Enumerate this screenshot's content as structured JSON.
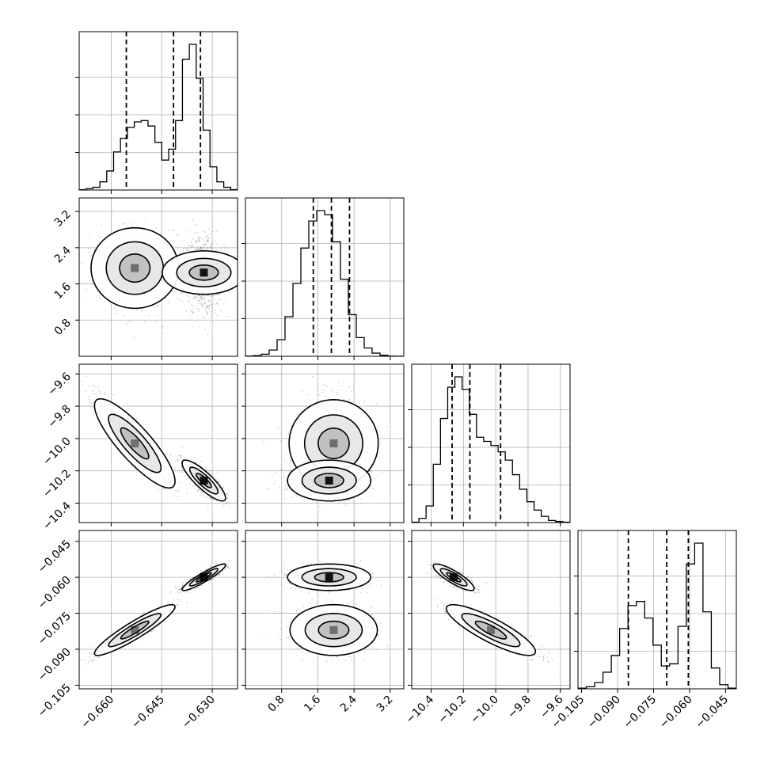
{
  "chart_data": {
    "type": "corner",
    "grid": true,
    "parameters": [
      {
        "range": [
          -0.6695,
          -0.6225
        ],
        "ticks": [
          -0.66,
          -0.645,
          -0.63
        ],
        "tick_labels": [
          "−0.660",
          "−0.645",
          "−0.630"
        ],
        "quantiles": [
          -0.6555,
          -0.6415,
          -0.6335
        ],
        "hist": [
          0.2,
          1,
          2,
          6,
          14,
          28,
          38,
          46,
          50,
          51,
          47,
          35,
          22,
          30,
          51,
          96,
          107,
          82,
          44,
          17,
          6,
          2,
          0.3
        ],
        "modes": [
          {
            "center": -0.653,
            "sd": 0.005,
            "w": 0.44
          },
          {
            "center": -0.6325,
            "sd": 0.0028,
            "w": 0.56
          }
        ]
      },
      {
        "range": [
          0.0,
          3.5
        ],
        "ticks": [
          0.8,
          1.6,
          2.4,
          3.2
        ],
        "tick_labels": [
          "0.8",
          "1.6",
          "2.4",
          "3.2"
        ],
        "quantiles": [
          1.5,
          1.9,
          2.3
        ],
        "hist": [
          0.1,
          0.3,
          1,
          3,
          8,
          19,
          35,
          52,
          65,
          70,
          68,
          55,
          37,
          20,
          9,
          4,
          1.5,
          0.5,
          0.1,
          0.05
        ],
        "modes": [
          {
            "center": 1.9,
            "sd": 0.4,
            "w": 1
          }
        ]
      },
      {
        "range": [
          -10.52,
          -9.54
        ],
        "ticks": [
          -10.4,
          -10.2,
          -10.0,
          -9.8,
          -9.6
        ],
        "tick_labels": [
          "−10.4",
          "−10.2",
          "−10.0",
          "−9.8",
          "−9.6"
        ],
        "quantiles": [
          -10.27,
          -10.16,
          -9.97
        ],
        "hist": [
          0.2,
          2,
          8,
          28,
          50,
          65,
          70,
          64,
          52,
          41,
          39,
          37,
          34,
          30,
          23,
          16,
          10,
          6,
          3,
          1,
          0.5,
          0.2
        ],
        "modes": [
          {
            "center": -10.26,
            "sd": 0.06,
            "w": 0.5
          },
          {
            "center": -10.03,
            "sd": 0.14,
            "w": 0.5
          }
        ]
      },
      {
        "range": [
          -0.1065,
          -0.0405
        ],
        "ticks": [
          -0.105,
          -0.09,
          -0.075,
          -0.06,
          -0.045
        ],
        "tick_labels": [
          "−0.105",
          "−0.090",
          "−0.075",
          "−0.060",
          "−0.045"
        ],
        "quantiles": [
          -0.0855,
          -0.0695,
          -0.0605
        ],
        "hist": [
          0.3,
          1,
          3,
          8,
          16,
          29,
          40,
          42,
          34,
          21,
          11,
          12,
          30,
          60,
          70,
          37,
          10,
          2,
          0.3
        ],
        "modes": [
          {
            "center": -0.082,
            "sd": 0.0045,
            "w": 0.5
          },
          {
            "center": -0.06,
            "sd": 0.0025,
            "w": 0.5
          }
        ]
      }
    ]
  }
}
